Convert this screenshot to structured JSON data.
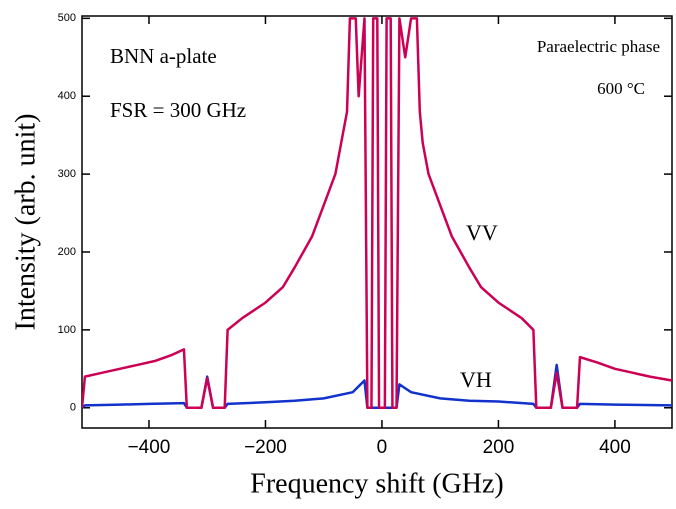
{
  "chart_data": {
    "type": "line",
    "x_label": "Frequency shift (GHz)",
    "y_label": "Intensity (arb. unit)",
    "annotations": [
      "BNN  a-plate",
      "FSR = 300 GHz",
      "Paraelectric phase",
      "600 °C"
    ],
    "xlim": [
      -515,
      498
    ],
    "ylim": [
      -26,
      503
    ],
    "xticks": [
      {
        "value": -400,
        "label": "−400"
      },
      {
        "value": -200,
        "label": "−200"
      },
      0,
      200,
      400
    ],
    "yticks": [
      0,
      100,
      200,
      300,
      400,
      500
    ],
    "series": [
      {
        "name": "VV",
        "color": "#cc0055",
        "x": [
          -515,
          -510,
          -480,
          -450,
          -420,
          -390,
          -360,
          -340,
          -335,
          -310,
          -300,
          -290,
          -270,
          -265,
          -240,
          -200,
          -170,
          -150,
          -120,
          -100,
          -80,
          -70,
          -60,
          -55,
          -45,
          -40,
          -30,
          -25,
          -18,
          -15,
          -8,
          -5,
          5,
          8,
          15,
          18,
          25,
          30,
          40,
          50,
          60,
          65,
          70,
          80,
          100,
          120,
          150,
          170,
          200,
          240,
          260,
          265,
          290,
          300,
          310,
          335,
          340,
          370,
          400,
          430,
          460,
          498
        ],
        "values": [
          0,
          40,
          45,
          50,
          55,
          60,
          68,
          75,
          0,
          0,
          38,
          0,
          0,
          100,
          115,
          135,
          155,
          180,
          220,
          260,
          300,
          340,
          380,
          500,
          500,
          400,
          500,
          0,
          0,
          500,
          500,
          0,
          0,
          500,
          500,
          0,
          0,
          500,
          450,
          500,
          500,
          380,
          340,
          300,
          260,
          220,
          180,
          155,
          135,
          115,
          100,
          0,
          0,
          45,
          0,
          0,
          65,
          58,
          50,
          45,
          40,
          35
        ]
      },
      {
        "name": "VH",
        "color": "#1133cc",
        "x": [
          -515,
          -510,
          -450,
          -400,
          -340,
          -335,
          -310,
          -300,
          -290,
          -270,
          -265,
          -200,
          -150,
          -100,
          -50,
          -30,
          -25,
          25,
          30,
          50,
          100,
          150,
          200,
          260,
          265,
          290,
          300,
          310,
          335,
          340,
          400,
          498
        ],
        "values": [
          0,
          3,
          4,
          5,
          6,
          0,
          0,
          40,
          0,
          0,
          5,
          7,
          9,
          12,
          20,
          35,
          0,
          0,
          30,
          20,
          12,
          9,
          8,
          5,
          0,
          0,
          55,
          0,
          0,
          5,
          4,
          3
        ]
      }
    ]
  }
}
